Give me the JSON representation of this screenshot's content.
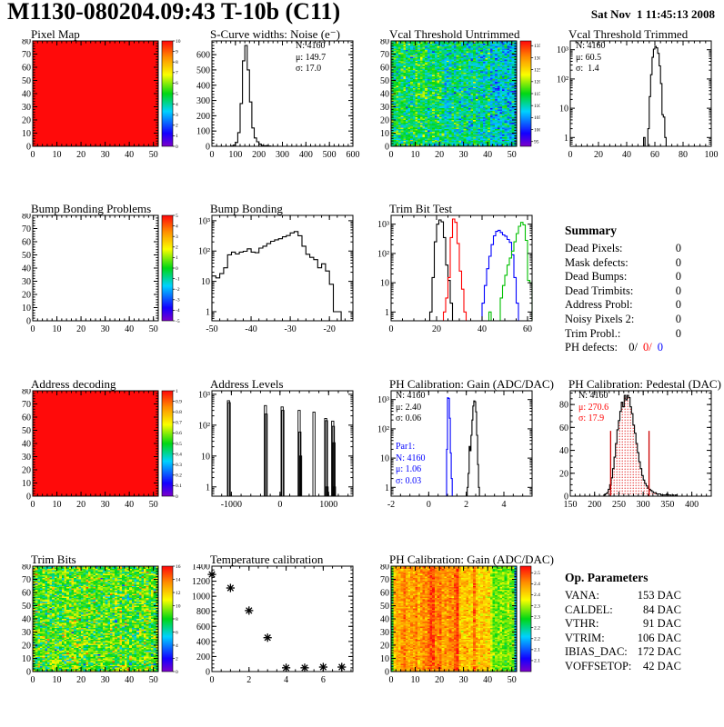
{
  "header": {
    "title": "M1130-080204.09:43 T-10b (C11)",
    "date": "Sat Nov  1 11:45:13 2008"
  },
  "summary": {
    "title": "Summary",
    "rows": [
      {
        "label": "Dead Pixels:",
        "value": "0"
      },
      {
        "label": "Mask defects:",
        "value": "0"
      },
      {
        "label": "Dead Bumps:",
        "value": "0"
      },
      {
        "label": "Dead Trimbits:",
        "value": "0"
      },
      {
        "label": "Address Probl:",
        "value": "0"
      },
      {
        "label": "Noisy Pixels 2:",
        "value": "0"
      },
      {
        "label": "Trim Probl.:",
        "value": "0"
      }
    ],
    "ph_defects": {
      "label": "PH defects:",
      "black": "0/",
      "red": "0/",
      "blue": "0"
    }
  },
  "op_parameters": {
    "title": "Op. Parameters",
    "rows": [
      {
        "label": "VANA:",
        "value": "153 DAC"
      },
      {
        "label": "CALDEL:",
        "value": "84 DAC"
      },
      {
        "label": "VTHR:",
        "value": "91 DAC"
      },
      {
        "label": "VTRIM:",
        "value": "106 DAC"
      },
      {
        "label": "IBIAS_DAC:",
        "value": "172 DAC"
      },
      {
        "label": "VOFFSETOP:",
        "value": "42 DAC"
      }
    ]
  },
  "colors": {
    "black": "#000000",
    "red": "#ff0000",
    "blue": "#0000ff",
    "green": "#00c000"
  },
  "chart_data": [
    {
      "id": "pixel-map",
      "type": "heatmap",
      "title": "Pixel Map",
      "xlim": [
        0,
        52
      ],
      "ylim": [
        0,
        80
      ],
      "xticks": [
        0,
        10,
        20,
        30,
        40,
        50
      ],
      "xminor": 2,
      "yticks": [
        0,
        10,
        20,
        30,
        40,
        50,
        60,
        70,
        80
      ],
      "yminor": 2,
      "heat": {
        "nx": 52,
        "ny": 80,
        "uniform": 10,
        "zmin": 0,
        "zmax": 10
      },
      "colorbar": {
        "zmin": 0,
        "zmax": 10,
        "ticks": [
          [
            10,
            "10"
          ],
          [
            9,
            "9"
          ],
          [
            8,
            "8"
          ],
          [
            7,
            "7"
          ],
          [
            6,
            "6"
          ],
          [
            5,
            "5"
          ],
          [
            4,
            "4"
          ],
          [
            3,
            "3"
          ],
          [
            2,
            "2"
          ],
          [
            1,
            "1"
          ],
          [
            0,
            "0"
          ]
        ]
      }
    },
    {
      "id": "scurve-noise",
      "type": "hist",
      "title": "S-Curve widths: Noise (e⁻)",
      "xlim": [
        0,
        600
      ],
      "ylim": [
        0,
        690
      ],
      "xticks": [
        0,
        100,
        200,
        300,
        400,
        500,
        600
      ],
      "xminor": 20,
      "yticks": [
        0,
        100,
        200,
        300,
        400,
        500,
        600
      ],
      "yminor": 20,
      "hists": [
        {
          "color": "#000000",
          "x0": 80,
          "w": 10,
          "v": [
            2,
            8,
            25,
            90,
            280,
            560,
            660,
            500,
            290,
            120,
            55,
            30,
            14,
            6,
            3,
            5,
            2
          ]
        }
      ],
      "stats": [
        "N: 4160",
        "μ: 149.7",
        "σ: 17.0"
      ]
    },
    {
      "id": "vcal-untrimmed",
      "type": "heatmap",
      "title": "Vcal Threshold Untrimmed",
      "xlim": [
        0,
        52
      ],
      "ylim": [
        0,
        80
      ],
      "xticks": [
        0,
        10,
        20,
        30,
        40,
        50
      ],
      "xminor": 2,
      "yticks": [
        0,
        10,
        20,
        30,
        40,
        50,
        60,
        70,
        80
      ],
      "yminor": 2,
      "heat": {
        "nx": 52,
        "ny": 80,
        "base": 114.5,
        "xslope": -0.13,
        "sigma": 4.2,
        "colsigma": 1.2,
        "zmin": 93,
        "zmax": 137,
        "seed": 7
      },
      "colorbar": {
        "zmin": 93,
        "zmax": 137,
        "ticks": [
          [
            135,
            "135"
          ],
          [
            130,
            "130"
          ],
          [
            125,
            "125"
          ],
          [
            120,
            "120"
          ],
          [
            115,
            "115"
          ],
          [
            110,
            "110"
          ],
          [
            105,
            "105"
          ],
          [
            100,
            "100"
          ],
          [
            95,
            "95"
          ]
        ]
      }
    },
    {
      "id": "vcal-trimmed",
      "type": "hist",
      "title": "Vcal Threshold Trimmed",
      "xlim": [
        0,
        100
      ],
      "ylim": [
        0.5,
        2000
      ],
      "ylog": true,
      "xticks": [
        0,
        20,
        40,
        60,
        80,
        100
      ],
      "xminor": 4,
      "hists": [
        {
          "color": "#000000",
          "x0": 52,
          "w": 1,
          "v": [
            1,
            0,
            0,
            2,
            25,
            140,
            550,
            1050,
            1300,
            1150,
            750,
            280,
            70,
            6,
            5,
            1
          ]
        }
      ],
      "stats": [
        "N: 4160",
        "μ: 60.5",
        "σ:  1.4"
      ]
    },
    {
      "id": "bump-bonding-problems",
      "type": "heatmap",
      "title": "Bump Bonding Problems",
      "xlim": [
        0,
        52
      ],
      "ylim": [
        0,
        80
      ],
      "xticks": [
        0,
        10,
        20,
        30,
        40,
        50
      ],
      "xminor": 2,
      "yticks": [
        0,
        10,
        20,
        30,
        40,
        50,
        60,
        70,
        80
      ],
      "yminor": 2,
      "colorbar": {
        "zmin": -5,
        "zmax": 5,
        "ticks": [
          [
            5,
            "5"
          ],
          [
            4,
            "4"
          ],
          [
            3,
            "3"
          ],
          [
            2,
            "2"
          ],
          [
            1,
            "1"
          ],
          [
            0,
            "0"
          ],
          [
            -1,
            "-1"
          ],
          [
            -2,
            "-2"
          ],
          [
            -3,
            "-3"
          ],
          [
            -4,
            "-4"
          ],
          [
            -5,
            "-5"
          ]
        ]
      }
    },
    {
      "id": "bump-bonding",
      "type": "hist",
      "title": "Bump Bonding",
      "xlim": [
        -50,
        -14
      ],
      "ylim": [
        0.5,
        1500
      ],
      "ylog": true,
      "xticks": [
        -50,
        -40,
        -30,
        -20
      ],
      "xminor": 2,
      "hists": [
        {
          "color": "#000000",
          "x0": -50,
          "w": 1,
          "v": [
            15,
            13,
            18,
            28,
            75,
            92,
            80,
            92,
            98,
            118,
            92,
            88,
            125,
            145,
            175,
            210,
            235,
            255,
            295,
            325,
            395,
            440,
            320,
            145,
            78,
            62,
            52,
            28,
            38,
            22,
            8,
            1,
            1
          ]
        }
      ]
    },
    {
      "id": "trim-bit-test",
      "type": "hist",
      "title": "Trim Bit Test",
      "xlim": [
        0,
        62
      ],
      "ylim": [
        0.5,
        2000
      ],
      "ylog": true,
      "xticks": [
        0,
        20,
        40,
        60
      ],
      "xminor": 5,
      "hists": [
        {
          "color": "#000000",
          "x0": 17,
          "w": 1,
          "v": [
            1,
            15,
            250,
            1000,
            1400,
            1200,
            350,
            40,
            12,
            2
          ]
        },
        {
          "color": "#ff0000",
          "x0": 23,
          "w": 1,
          "v": [
            1,
            3,
            15,
            350,
            1500,
            1150,
            220,
            25,
            6,
            1
          ]
        },
        {
          "color": "#0000ff",
          "x0": 40,
          "w": 1,
          "v": [
            2,
            8,
            30,
            80,
            200,
            400,
            570,
            620,
            520,
            430,
            390,
            300,
            240,
            90,
            15,
            2
          ]
        },
        {
          "color": "#00c000",
          "x0": 43,
          "w": 1,
          "v": [
            1,
            0,
            0,
            0,
            0,
            3,
            8,
            18,
            40,
            70,
            120,
            250,
            480,
            850,
            1150,
            950,
            280,
            12,
            10
          ]
        }
      ]
    },
    {
      "id": "address-decoding",
      "type": "heatmap",
      "title": "Address decoding",
      "xlim": [
        0,
        52
      ],
      "ylim": [
        0,
        80
      ],
      "xticks": [
        0,
        10,
        20,
        30,
        40,
        50
      ],
      "xminor": 2,
      "yticks": [
        0,
        10,
        20,
        30,
        40,
        50,
        60,
        70,
        80
      ],
      "yminor": 2,
      "heat": {
        "nx": 52,
        "ny": 80,
        "uniform": 1,
        "zmin": 0,
        "zmax": 1
      },
      "colorbar": {
        "zmin": 0,
        "zmax": 1,
        "ticks": [
          [
            1,
            "1"
          ],
          [
            0.9,
            "0.9"
          ],
          [
            0.8,
            "0.8"
          ],
          [
            0.7,
            "0.7"
          ],
          [
            0.6,
            "0.6"
          ],
          [
            0.5,
            "0.5"
          ],
          [
            0.4,
            "0.4"
          ],
          [
            0.3,
            "0.3"
          ],
          [
            0.2,
            "0.2"
          ],
          [
            0.1,
            "0.1"
          ],
          [
            0,
            "0"
          ]
        ]
      }
    },
    {
      "id": "address-levels",
      "type": "spikes",
      "title": "Address Levels",
      "xlim": [
        -1400,
        1500
      ],
      "ylim": [
        0.5,
        1300
      ],
      "ylog": true,
      "xticks": [
        -1000,
        0,
        1000
      ],
      "xminor": 200,
      "spikes": [
        [
          -1060,
          620
        ],
        [
          -1045,
          540
        ],
        [
          -300,
          430
        ],
        [
          -285,
          230
        ],
        [
          45,
          390
        ],
        [
          60,
          300
        ],
        [
          395,
          300
        ],
        [
          410,
          60
        ],
        [
          425,
          10
        ],
        [
          700,
          265
        ],
        [
          940,
          165
        ],
        [
          955,
          140
        ],
        [
          968,
          1
        ],
        [
          1085,
          135
        ],
        [
          1098,
          92
        ],
        [
          1110,
          27
        ],
        [
          1120,
          1
        ]
      ]
    },
    {
      "id": "ph-gain-hist",
      "type": "hist",
      "title": "PH Calibration: Gain (ADC/DAC)",
      "xlim": [
        -2,
        5.5
      ],
      "ylim": [
        0.5,
        2000
      ],
      "ylog": true,
      "xticks": [
        -2,
        0,
        2,
        4
      ],
      "xminor": 0.5,
      "hists": [
        {
          "color": "#0000ff",
          "x0": 0.95,
          "w": 0.05,
          "v": [
            20,
            1150,
            1100,
            230,
            15,
            2
          ]
        },
        {
          "color": "#000000",
          "x0": 2.05,
          "w": 0.05,
          "v": [
            1,
            3,
            25,
            18,
            60,
            200,
            600,
            900,
            850,
            380,
            60,
            6,
            1
          ]
        }
      ],
      "stats_black": [
        "N: 4160",
        "μ: 2.40",
        "σ: 0.06"
      ],
      "stats_blue": [
        "Par1:",
        "N: 4160",
        "μ: 1.06",
        "σ: 0.03"
      ]
    },
    {
      "id": "ph-pedestal",
      "type": "hist",
      "title": "PH Calibration: Pedestal (DAC)",
      "xlim": [
        150,
        440
      ],
      "ylim": [
        0,
        92
      ],
      "xticks": [
        150,
        200,
        250,
        300,
        350,
        400
      ],
      "xminor": 10,
      "yticks": [
        0,
        20,
        40,
        60,
        80
      ],
      "yminor": 5,
      "hists": [
        {
          "color": "#000000",
          "dotfill": true,
          "x0": 219,
          "w": 3,
          "v": [
            1,
            2,
            3,
            6,
            10,
            16,
            24,
            34,
            46,
            58,
            66,
            74,
            82,
            78,
            88,
            84,
            88,
            86,
            78,
            72,
            62,
            55,
            46,
            38,
            30,
            24,
            18,
            14,
            11,
            9,
            7,
            6,
            5,
            4,
            3,
            3,
            2,
            2,
            2,
            1,
            1,
            1,
            1,
            2,
            1,
            1,
            0,
            1,
            0,
            1
          ]
        }
      ],
      "vlines": [
        {
          "x": 233,
          "y0": 0,
          "y1": 57,
          "color": "#cc0000"
        },
        {
          "x": 312,
          "y0": 0,
          "y1": 57,
          "color": "#cc0000"
        }
      ],
      "stats": [
        "N: 4160",
        "μ: 270.6",
        "σ: 17.9"
      ]
    },
    {
      "id": "trim-bits",
      "type": "heatmap",
      "title": "Trim Bits",
      "xlim": [
        0,
        52
      ],
      "ylim": [
        0,
        80
      ],
      "xticks": [
        0,
        10,
        20,
        30,
        40,
        50
      ],
      "xminor": 2,
      "yticks": [
        0,
        10,
        20,
        30,
        40,
        50,
        60,
        70,
        80
      ],
      "yminor": 2,
      "heat": {
        "nx": 52,
        "ny": 80,
        "base": 8.8,
        "sigma": 1.7,
        "colsigma": 0.3,
        "outliers": [
          {
            "p": 0.012,
            "v": 13.5,
            "s": 1
          },
          {
            "p": 0.01,
            "v": 4,
            "s": 1
          }
        ],
        "zmin": 0,
        "zmax": 16,
        "seed": 11
      },
      "colorbar": {
        "zmin": 0,
        "zmax": 16,
        "ticks": [
          [
            16,
            "16"
          ],
          [
            14,
            "14"
          ],
          [
            12,
            "12"
          ],
          [
            10,
            "10"
          ],
          [
            8,
            "8"
          ],
          [
            6,
            "6"
          ],
          [
            4,
            "4"
          ],
          [
            2,
            "2"
          ],
          [
            0,
            "0"
          ]
        ]
      }
    },
    {
      "id": "temperature-calibration",
      "type": "scatter",
      "title": "Temperature calibration",
      "xlim": [
        0,
        7.6
      ],
      "ylim": [
        0,
        1400
      ],
      "xticks": [
        0,
        2,
        4,
        6
      ],
      "xminor": 0.5,
      "yticks": [
        0,
        200,
        400,
        600,
        800,
        1000,
        1200,
        1400
      ],
      "yminor": 50,
      "points": [
        [
          0,
          1290
        ],
        [
          1,
          1110
        ],
        [
          2,
          810
        ],
        [
          3,
          450
        ],
        [
          4,
          50
        ],
        [
          5,
          50
        ],
        [
          6,
          60
        ],
        [
          7,
          60
        ]
      ]
    },
    {
      "id": "ph-gain-map",
      "type": "heatmap",
      "title": "PH Calibration: Gain (ADC/DAC)",
      "xlim": [
        0,
        52
      ],
      "ylim": [
        0,
        80
      ],
      "xticks": [
        0,
        10,
        20,
        30,
        40,
        50
      ],
      "xminor": 2,
      "yticks": [
        0,
        10,
        20,
        30,
        40,
        50,
        60,
        70,
        80
      ],
      "yminor": 2,
      "heat": {
        "nx": 52,
        "ny": 80,
        "sigma": 0.025,
        "zmin": 2.05,
        "zmax": 2.53,
        "seed": 13,
        "cols": [
          2.3,
          2.42,
          2.44,
          2.43,
          2.45,
          2.47,
          2.44,
          2.43,
          2.45,
          2.44,
          2.46,
          2.43,
          2.44,
          2.46,
          2.45,
          2.47,
          2.5,
          2.49,
          2.45,
          2.46,
          2.47,
          2.44,
          2.45,
          2.44,
          2.46,
          2.45,
          2.47,
          2.5,
          2.42,
          2.41,
          2.42,
          2.43,
          2.41,
          2.42,
          2.47,
          2.42,
          2.4,
          2.41,
          2.42,
          2.4,
          2.41,
          2.36,
          2.32,
          2.33,
          2.32,
          2.34,
          2.33,
          2.32,
          2.34,
          2.33,
          2.32,
          2.2
        ]
      },
      "colorbar": {
        "zmin": 2.05,
        "zmax": 2.53,
        "ticks": [
          [
            2.5,
            "2.5"
          ],
          [
            2.45,
            "2.45"
          ],
          [
            2.4,
            "2.4"
          ],
          [
            2.35,
            "2.35"
          ],
          [
            2.3,
            "2.3"
          ],
          [
            2.25,
            "2.25"
          ],
          [
            2.2,
            "2.2"
          ],
          [
            2.15,
            "2.15"
          ],
          [
            2.1,
            "2.1"
          ]
        ]
      }
    }
  ]
}
